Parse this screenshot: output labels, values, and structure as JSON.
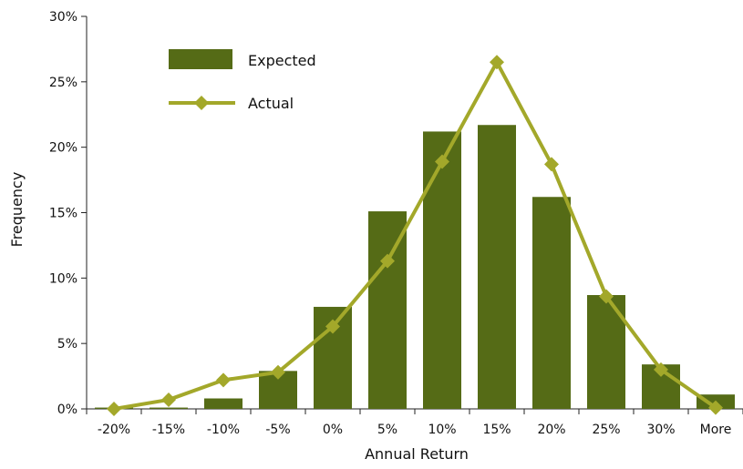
{
  "chart_data": {
    "type": "bar",
    "categories": [
      "-20%",
      "-15%",
      "-10%",
      "-5%",
      "0%",
      "5%",
      "10%",
      "15%",
      "20%",
      "25%",
      "30%",
      "More"
    ],
    "series": [
      {
        "name": "Expected",
        "type": "bar",
        "values": [
          0.1,
          0.1,
          0.8,
          2.9,
          7.8,
          15.1,
          21.2,
          21.7,
          16.2,
          8.7,
          3.4,
          1.1
        ]
      },
      {
        "name": "Actual",
        "type": "line",
        "marker": "diamond",
        "values": [
          0.0,
          0.7,
          2.2,
          2.8,
          6.3,
          11.3,
          18.9,
          26.5,
          18.7,
          8.6,
          3.0,
          0.1
        ]
      }
    ],
    "xlabel": "Annual Return",
    "ylabel": "Frequency",
    "ylim": [
      0,
      30
    ],
    "yticks": [
      "0%",
      "5%",
      "10%",
      "15%",
      "20%",
      "25%",
      "30%"
    ],
    "grid": false,
    "legend_position": "top-left",
    "colors": {
      "Expected": "#556b16",
      "Actual": "#a3a82a"
    }
  }
}
